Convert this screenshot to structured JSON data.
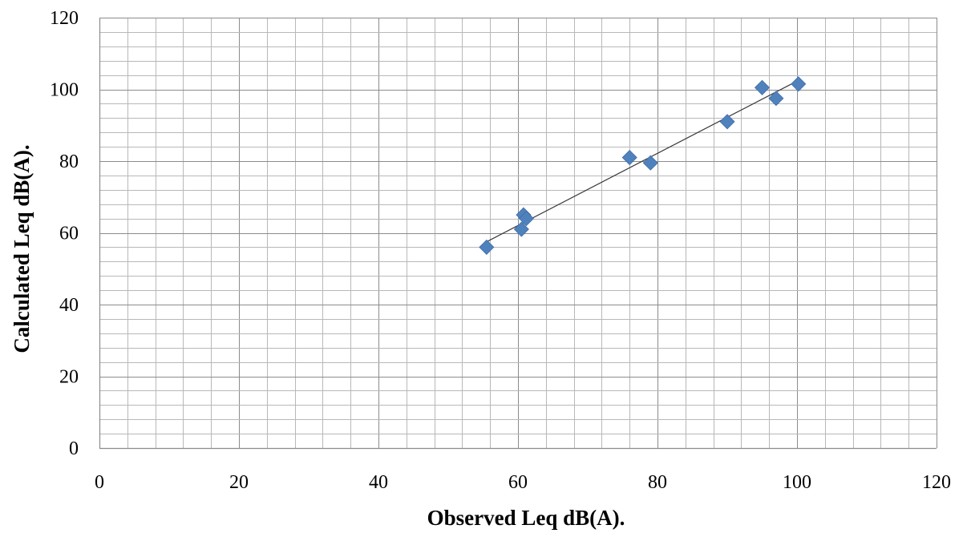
{
  "chart_data": {
    "type": "scatter",
    "title": "",
    "xlabel": "Observed Leq dB(A).",
    "ylabel": "Calculated Leq dB(A).",
    "xlim": [
      0,
      120
    ],
    "ylim": [
      0,
      120
    ],
    "x_major_step": 20,
    "y_major_step": 20,
    "x_minor_step": 4,
    "y_minor_step": 4,
    "grid": true,
    "legend": "none",
    "x_ticks": [
      "0",
      "20",
      "40",
      "60",
      "80",
      "100",
      "120"
    ],
    "y_ticks": [
      "0",
      "20",
      "40",
      "60",
      "80",
      "100",
      "120"
    ],
    "marker": "diamond",
    "marker_color": "#4f81bd",
    "trendline": {
      "type": "linear",
      "x": [
        55.5,
        100.2
      ],
      "y": [
        57.5,
        102.5
      ]
    },
    "series": [
      {
        "points": [
          {
            "x": 55.5,
            "y": 56
          },
          {
            "x": 60.5,
            "y": 61
          },
          {
            "x": 60.8,
            "y": 65
          },
          {
            "x": 61.2,
            "y": 64
          },
          {
            "x": 76,
            "y": 81
          },
          {
            "x": 79,
            "y": 79.5
          },
          {
            "x": 90,
            "y": 91
          },
          {
            "x": 95,
            "y": 100.5
          },
          {
            "x": 97,
            "y": 97.5
          },
          {
            "x": 100.2,
            "y": 101.5
          }
        ]
      }
    ]
  }
}
